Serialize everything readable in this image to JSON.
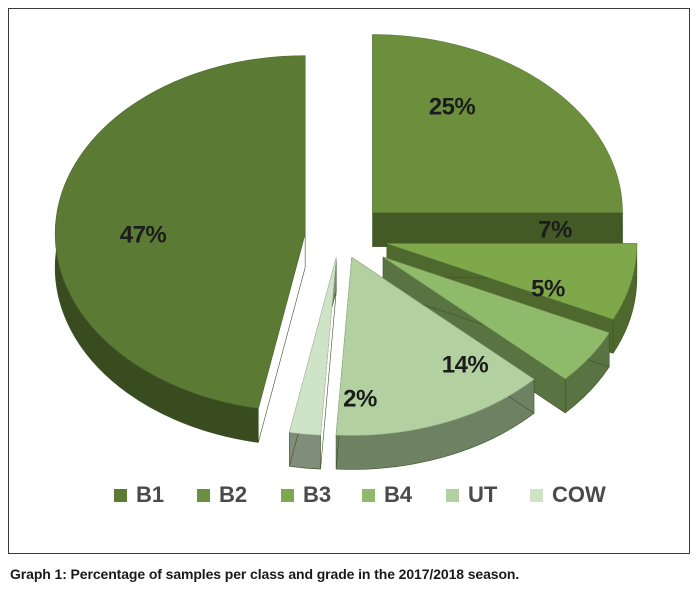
{
  "chart_data": {
    "type": "pie",
    "categories": [
      "B1",
      "B2",
      "B3",
      "B4",
      "UT",
      "COW"
    ],
    "values": [
      47,
      25,
      7,
      5,
      14,
      2
    ],
    "labels": [
      "47%",
      "25%",
      "7%",
      "5%",
      "14%",
      "2%"
    ],
    "colors": [
      "#5b7a34",
      "#6c8f3e",
      "#7fa84a",
      "#8fba6a",
      "#b2d0a0",
      "#cfe3c6"
    ],
    "legend_position": "bottom",
    "exploded": true,
    "style": "3d"
  },
  "caption": "Graph 1: Percentage of samples per class and grade in the 2017/2018 season."
}
